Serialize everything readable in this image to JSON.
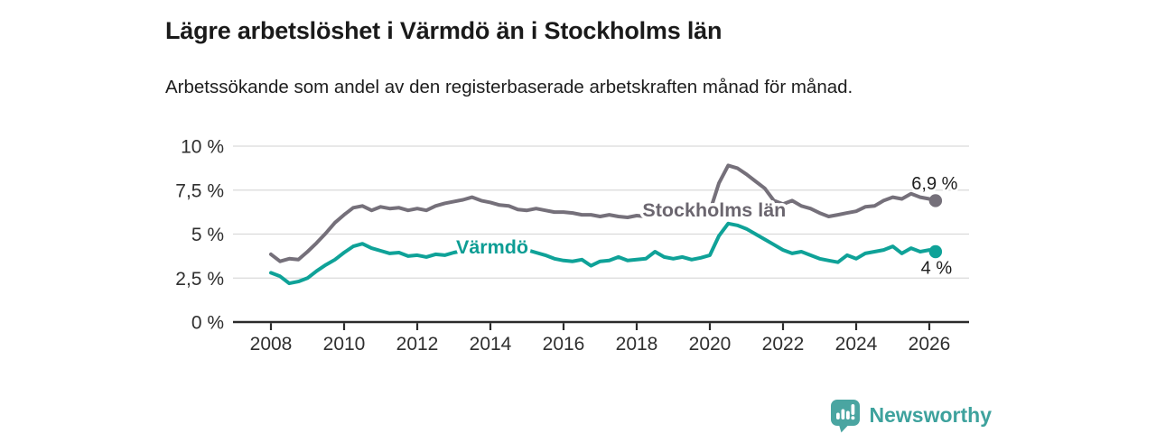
{
  "title": "Lägre arbetslöshet i Värmdö än i Stockholms län",
  "subtitle": "Arbetssökande som andel av den registerbaserade arbetskraften månad för månad.",
  "branding": {
    "logo_text": "Newsworthy",
    "logo_icon": "bar-chart-speech-bubble-icon",
    "logo_color": "#4aa5a1",
    "logo_text_color": "#3ea29d"
  },
  "colors": {
    "stockholm_line": "#75707a",
    "varmdo_line": "#0fa298",
    "gridline": "#dadada",
    "axis": "#2b2b2b",
    "axis_text": "#2f2f2f",
    "annotation_text": "#1d1d1d"
  },
  "chart_data": {
    "type": "line",
    "title": "Lägre arbetslöshet i Värmdö än i Stockholms län",
    "subtitle": "Arbetssökande som andel av den registerbaserade arbetskraften månad för månad.",
    "xlabel": "",
    "ylabel": "",
    "x_unit": "decimal_year",
    "y_unit": "percent",
    "grid": "horizontal",
    "ylim": [
      0,
      10.5
    ],
    "xlim": [
      2006.95,
      2027.1
    ],
    "x_ticks": [
      2008,
      2010,
      2012,
      2014,
      2016,
      2018,
      2020,
      2022,
      2024,
      2026
    ],
    "y_ticks": [
      {
        "value": 0,
        "label": "0 %"
      },
      {
        "value": 2.5,
        "label": "2,5 %"
      },
      {
        "value": 5,
        "label": "5 %"
      },
      {
        "value": 7.5,
        "label": "7,5 %"
      },
      {
        "value": 10,
        "label": "10 %"
      }
    ],
    "x": [
      2008,
      2008.25,
      2008.5,
      2008.75,
      2009,
      2009.25,
      2009.5,
      2009.75,
      2010,
      2010.25,
      2010.5,
      2010.75,
      2011,
      2011.25,
      2011.5,
      2011.75,
      2012,
      2012.25,
      2012.5,
      2012.75,
      2013,
      2013.25,
      2013.5,
      2013.75,
      2014,
      2014.25,
      2014.5,
      2014.75,
      2015,
      2015.25,
      2015.5,
      2015.75,
      2016,
      2016.25,
      2016.5,
      2016.75,
      2017,
      2017.25,
      2017.5,
      2017.75,
      2018,
      2018.25,
      2018.5,
      2018.75,
      2019,
      2019.25,
      2019.5,
      2019.75,
      2020,
      2020.25,
      2020.5,
      2020.75,
      2021,
      2021.25,
      2021.5,
      2021.75,
      2022,
      2022.25,
      2022.5,
      2022.75,
      2023,
      2023.25,
      2023.5,
      2023.75,
      2024,
      2024.25,
      2024.5,
      2024.75,
      2025,
      2025.25,
      2025.5,
      2025.75,
      2026,
      2026.17
    ],
    "series": [
      {
        "name": "Stockholms län",
        "color": "#75707a",
        "label_color": "#6b666f",
        "end_label": "6,9 %",
        "end_value": 6.9,
        "end_label_position": "above",
        "label_pos": {
          "x": 2020.12,
          "y": 6.35
        },
        "values": [
          3.85,
          3.45,
          3.6,
          3.55,
          4.0,
          4.5,
          5.05,
          5.65,
          6.1,
          6.5,
          6.6,
          6.35,
          6.55,
          6.45,
          6.5,
          6.35,
          6.45,
          6.35,
          6.6,
          6.75,
          6.85,
          6.95,
          7.1,
          6.9,
          6.8,
          6.65,
          6.6,
          6.4,
          6.35,
          6.45,
          6.35,
          6.25,
          6.25,
          6.2,
          6.1,
          6.1,
          6.0,
          6.1,
          6.0,
          5.95,
          6.05,
          6.0,
          6.05,
          6.05,
          6.05,
          6.1,
          6.1,
          6.15,
          6.3,
          7.9,
          8.9,
          8.75,
          8.4,
          8.0,
          7.6,
          6.9,
          6.7,
          6.9,
          6.6,
          6.45,
          6.2,
          6.0,
          6.1,
          6.2,
          6.3,
          6.55,
          6.6,
          6.9,
          7.1,
          7.0,
          7.3,
          7.1,
          7.0,
          6.9
        ]
      },
      {
        "name": "Värmdö",
        "color": "#0fa298",
        "label_color": "#0d9d94",
        "end_label": "4 %",
        "end_value": 4.0,
        "end_label_position": "below",
        "label_pos": {
          "x": 2014.05,
          "y": 4.26
        },
        "values": [
          2.8,
          2.6,
          2.2,
          2.3,
          2.5,
          2.9,
          3.25,
          3.55,
          3.95,
          4.3,
          4.45,
          4.2,
          4.05,
          3.9,
          3.95,
          3.75,
          3.8,
          3.7,
          3.85,
          3.8,
          3.95,
          4.05,
          3.95,
          4.0,
          4.05,
          4.0,
          4.1,
          4.0,
          4.1,
          3.95,
          3.8,
          3.6,
          3.5,
          3.45,
          3.55,
          3.2,
          3.45,
          3.5,
          3.7,
          3.5,
          3.55,
          3.6,
          4.0,
          3.7,
          3.6,
          3.7,
          3.55,
          3.65,
          3.8,
          4.9,
          5.6,
          5.5,
          5.3,
          5.0,
          4.7,
          4.4,
          4.1,
          3.9,
          4.0,
          3.8,
          3.6,
          3.5,
          3.4,
          3.8,
          3.6,
          3.9,
          4.0,
          4.1,
          4.3,
          3.9,
          4.2,
          4.0,
          4.1,
          4.0
        ]
      }
    ]
  }
}
